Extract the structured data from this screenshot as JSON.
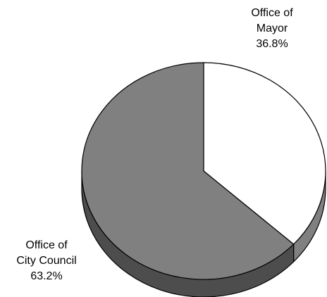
{
  "chart_data": {
    "type": "pie",
    "style": "3d",
    "title": "",
    "slices": [
      {
        "label_line1": "Office of",
        "label_line2": "Mayor",
        "value": 36.8,
        "value_label": "36.8%",
        "color": "#ffffff",
        "side_color": "#808080"
      },
      {
        "label_line1": "Office of",
        "label_line2": "City Council",
        "value": 63.2,
        "value_label": "63.2%",
        "color": "#808080",
        "side_color": "#4d4d4d"
      }
    ],
    "legend": "none"
  }
}
